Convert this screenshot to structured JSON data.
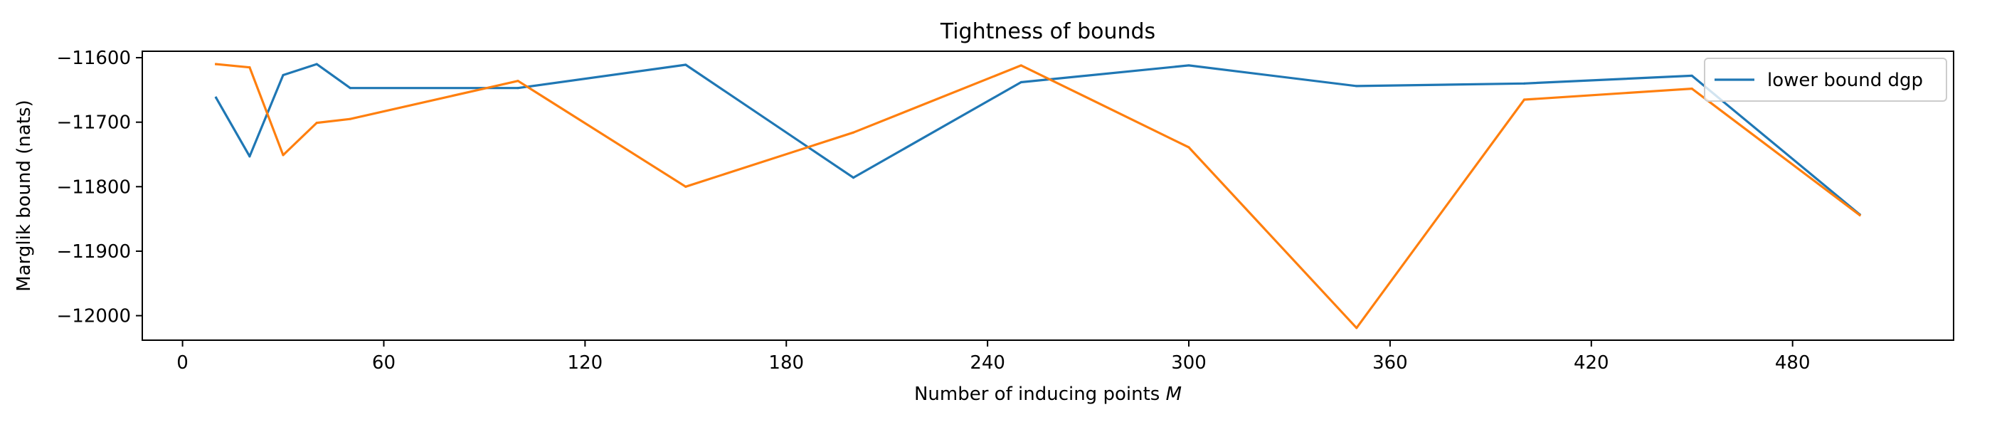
{
  "chart_data": {
    "type": "line",
    "title": "Tightness of bounds",
    "xlabel": "Number of inducing points ",
    "xlabel_math": "M",
    "ylabel": "Marglik bound (nats)",
    "xlim": [
      -12,
      528
    ],
    "ylim": [
      -12038,
      -11590
    ],
    "xticks": [
      0,
      60,
      120,
      180,
      240,
      300,
      360,
      420,
      480
    ],
    "yticks": [
      -11600,
      -11700,
      -11800,
      -11900,
      -12000
    ],
    "xtick_labels": [
      "0",
      "60",
      "120",
      "180",
      "240",
      "300",
      "360",
      "420",
      "480"
    ],
    "ytick_labels": [
      "−11600",
      "−11700",
      "−11800",
      "−11900",
      "−12000"
    ],
    "grid": false,
    "legend_position": "upper-right",
    "series": [
      {
        "name": "lower bound dgp",
        "color": "#1f77b4",
        "in_legend": true,
        "x": [
          10,
          20,
          30,
          40,
          50,
          100,
          150,
          200,
          250,
          300,
          350,
          400,
          450,
          500
        ],
        "y": [
          -11662,
          -11753,
          -11627,
          -11610,
          -11647,
          -11647,
          -11611,
          -11786,
          -11638,
          -11612,
          -11644,
          -11640,
          -11628,
          -11843
        ]
      },
      {
        "color": "#ff7f0e",
        "in_legend": false,
        "x": [
          10,
          20,
          30,
          40,
          50,
          100,
          150,
          200,
          250,
          300,
          350,
          400,
          450,
          500
        ],
        "y": [
          -11610,
          -11615,
          -11751,
          -11701,
          -11695,
          -11636,
          -11800,
          -11716,
          -11612,
          -11739,
          -12019,
          -11665,
          -11648,
          -11844
        ]
      }
    ]
  }
}
